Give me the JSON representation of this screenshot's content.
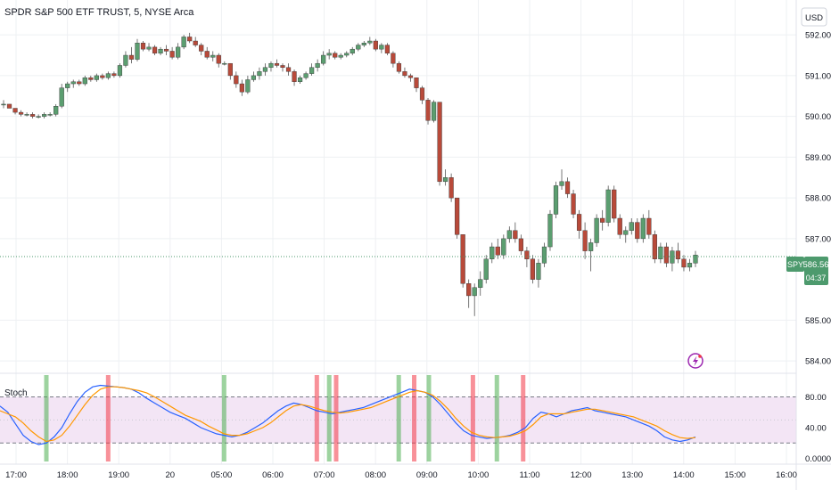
{
  "header": {
    "title": "SPDR S&P 500 ETF TRUST, 5, NYSE Arca"
  },
  "currency": {
    "label": "USD"
  },
  "price_badge": {
    "symbol": "SPY",
    "price": "586.56",
    "countdown": "04:37"
  },
  "indicator": {
    "label": "Stoch"
  },
  "colors": {
    "up": "#26a69a",
    "up_body": "#5b9e70",
    "down": "#b84a3a",
    "k_line": "#2962ff",
    "d_line": "#ff9800",
    "band_fill": "#f3e5f5",
    "buy_band": "#4caf50",
    "sell_band": "#f23645",
    "badge": "#4d9a6d",
    "grid": "#eef0f3"
  },
  "chart_data": [
    {
      "type": "candlestick",
      "title": "SPDR S&P 500 ETF TRUST, 5, NYSE Arca",
      "y_ticks": [
        "592.00",
        "591.00",
        "590.00",
        "589.00",
        "588.00",
        "587.00",
        "585.00",
        "584.00"
      ],
      "ylim": [
        583.85,
        592.2
      ],
      "x_ticks": [
        "17:00",
        "18:00",
        "19:00",
        "20",
        "05:00",
        "06:00",
        "07:00",
        "08:00",
        "09:00",
        "10:00",
        "11:00",
        "12:00",
        "13:00",
        "14:00",
        "15:00",
        "16:00"
      ],
      "last_price": 586.56,
      "candles": [
        [
          590.3,
          590.4,
          590.2,
          590.3
        ],
        [
          590.3,
          590.3,
          590.2,
          590.2
        ],
        [
          590.2,
          590.2,
          590.05,
          590.1
        ],
        [
          590.1,
          590.15,
          590.0,
          590.05
        ],
        [
          590.05,
          590.1,
          590.0,
          590.05
        ],
        [
          590.05,
          590.1,
          589.95,
          590.0
        ],
        [
          590.0,
          590.05,
          589.95,
          590.0
        ],
        [
          590.0,
          590.1,
          589.95,
          590.05
        ],
        [
          590.05,
          590.1,
          590.0,
          590.05
        ],
        [
          590.05,
          590.3,
          590.0,
          590.25
        ],
        [
          590.25,
          590.8,
          590.2,
          590.7
        ],
        [
          590.7,
          590.85,
          590.6,
          590.8
        ],
        [
          590.8,
          590.9,
          590.7,
          590.85
        ],
        [
          590.85,
          590.9,
          590.75,
          590.8
        ],
        [
          590.8,
          591.0,
          590.75,
          590.95
        ],
        [
          590.95,
          591.0,
          590.85,
          590.9
        ],
        [
          590.9,
          591.05,
          590.85,
          591.0
        ],
        [
          591.0,
          591.05,
          590.9,
          590.95
        ],
        [
          590.95,
          591.1,
          590.9,
          591.05
        ],
        [
          591.05,
          591.1,
          590.95,
          591.0
        ],
        [
          591.0,
          591.3,
          590.95,
          591.25
        ],
        [
          591.25,
          591.6,
          591.2,
          591.5
        ],
        [
          591.5,
          591.7,
          591.3,
          591.4
        ],
        [
          591.4,
          591.9,
          591.35,
          591.8
        ],
        [
          591.8,
          591.85,
          591.6,
          591.65
        ],
        [
          591.65,
          591.8,
          591.6,
          591.7
        ],
        [
          591.7,
          591.75,
          591.5,
          591.55
        ],
        [
          591.55,
          591.7,
          591.5,
          591.65
        ],
        [
          591.65,
          591.75,
          591.5,
          591.6
        ],
        [
          591.6,
          591.7,
          591.4,
          591.45
        ],
        [
          591.45,
          591.8,
          591.4,
          591.7
        ],
        [
          591.7,
          592.0,
          591.65,
          591.95
        ],
        [
          591.95,
          592.05,
          591.8,
          591.85
        ],
        [
          591.85,
          591.95,
          591.7,
          591.75
        ],
        [
          591.75,
          591.8,
          591.5,
          591.6
        ],
        [
          591.6,
          591.7,
          591.4,
          591.45
        ],
        [
          591.45,
          591.6,
          591.35,
          591.5
        ],
        [
          591.5,
          591.55,
          591.2,
          591.3
        ],
        [
          591.3,
          591.35,
          591.25,
          591.3
        ],
        [
          591.3,
          591.3,
          590.9,
          591.0
        ],
        [
          591.0,
          591.1,
          590.7,
          590.8
        ],
        [
          590.8,
          590.9,
          590.5,
          590.6
        ],
        [
          590.6,
          591.0,
          590.55,
          590.9
        ],
        [
          590.9,
          591.1,
          590.85,
          591.0
        ],
        [
          591.0,
          591.2,
          590.9,
          591.1
        ],
        [
          591.1,
          591.3,
          591.0,
          591.2
        ],
        [
          591.2,
          591.35,
          591.1,
          591.3
        ],
        [
          591.3,
          591.4,
          591.2,
          591.25
        ],
        [
          591.25,
          591.3,
          591.1,
          591.2
        ],
        [
          591.2,
          591.3,
          591.0,
          591.1
        ],
        [
          591.1,
          591.15,
          590.75,
          590.85
        ],
        [
          590.85,
          591.0,
          590.8,
          590.95
        ],
        [
          590.95,
          591.1,
          590.9,
          591.05
        ],
        [
          591.05,
          591.3,
          591.0,
          591.2
        ],
        [
          591.2,
          591.4,
          591.1,
          591.3
        ],
        [
          591.3,
          591.6,
          591.25,
          591.5
        ],
        [
          591.5,
          591.65,
          591.4,
          591.55
        ],
        [
          591.55,
          591.6,
          591.4,
          591.45
        ],
        [
          591.45,
          591.55,
          591.4,
          591.5
        ],
        [
          591.5,
          591.6,
          591.45,
          591.55
        ],
        [
          591.55,
          591.7,
          591.5,
          591.65
        ],
        [
          591.65,
          591.8,
          591.6,
          591.75
        ],
        [
          591.75,
          591.85,
          591.7,
          591.8
        ],
        [
          591.8,
          591.95,
          591.75,
          591.85
        ],
        [
          591.85,
          591.9,
          591.6,
          591.65
        ],
        [
          591.65,
          591.8,
          591.55,
          591.75
        ],
        [
          591.75,
          591.8,
          591.5,
          591.55
        ],
        [
          591.55,
          591.6,
          591.2,
          591.3
        ],
        [
          591.3,
          591.35,
          591.05,
          591.1
        ],
        [
          591.1,
          591.2,
          590.95,
          591.0
        ],
        [
          591.0,
          591.05,
          590.85,
          590.95
        ],
        [
          590.95,
          590.95,
          590.6,
          590.7
        ],
        [
          590.7,
          590.75,
          590.3,
          590.4
        ],
        [
          590.4,
          590.45,
          589.8,
          589.9
        ],
        [
          589.9,
          590.4,
          589.85,
          590.35
        ],
        [
          590.35,
          590.35,
          588.3,
          588.4
        ],
        [
          588.4,
          588.7,
          588.3,
          588.5
        ],
        [
          588.5,
          588.6,
          587.9,
          588.0
        ],
        [
          588.0,
          588.0,
          587.0,
          587.1
        ],
        [
          587.1,
          587.1,
          585.8,
          585.9
        ],
        [
          585.9,
          586.0,
          585.3,
          585.6
        ],
        [
          585.6,
          585.9,
          585.1,
          585.8
        ],
        [
          585.8,
          586.2,
          585.6,
          586.0
        ],
        [
          586.0,
          586.6,
          585.9,
          586.5
        ],
        [
          586.5,
          586.9,
          586.4,
          586.8
        ],
        [
          586.8,
          587.0,
          586.5,
          586.6
        ],
        [
          586.6,
          587.1,
          586.5,
          587.0
        ],
        [
          587.0,
          587.3,
          586.9,
          587.2
        ],
        [
          587.2,
          587.4,
          586.9,
          587.0
        ],
        [
          587.0,
          587.1,
          586.6,
          586.7
        ],
        [
          586.7,
          586.8,
          586.3,
          586.5
        ],
        [
          586.5,
          586.6,
          585.9,
          586.0
        ],
        [
          586.0,
          586.5,
          585.8,
          586.4
        ],
        [
          586.4,
          586.9,
          586.3,
          586.8
        ],
        [
          586.8,
          587.7,
          586.7,
          587.6
        ],
        [
          587.6,
          588.4,
          587.5,
          588.3
        ],
        [
          588.3,
          588.7,
          588.2,
          588.4
        ],
        [
          588.4,
          588.5,
          588.0,
          588.1
        ],
        [
          588.1,
          588.2,
          587.5,
          587.6
        ],
        [
          587.6,
          587.7,
          587.0,
          587.2
        ],
        [
          587.2,
          587.4,
          586.5,
          586.7
        ],
        [
          586.7,
          587.0,
          586.2,
          586.9
        ],
        [
          586.9,
          587.6,
          586.8,
          587.5
        ],
        [
          587.5,
          587.7,
          587.2,
          587.4
        ],
        [
          587.4,
          588.3,
          587.3,
          588.2
        ],
        [
          588.2,
          588.3,
          587.4,
          587.5
        ],
        [
          587.5,
          587.6,
          587.0,
          587.1
        ],
        [
          587.1,
          587.3,
          586.9,
          587.2
        ],
        [
          587.2,
          587.5,
          587.1,
          587.4
        ],
        [
          587.4,
          587.5,
          586.9,
          587.0
        ],
        [
          587.0,
          587.6,
          586.9,
          587.5
        ],
        [
          587.5,
          587.7,
          587.0,
          587.1
        ],
        [
          587.1,
          587.2,
          586.4,
          586.5
        ],
        [
          586.5,
          586.9,
          586.4,
          586.8
        ],
        [
          586.8,
          586.9,
          586.3,
          586.4
        ],
        [
          586.4,
          586.8,
          586.2,
          586.7
        ],
        [
          586.7,
          586.9,
          586.4,
          586.5
        ],
        [
          586.5,
          586.6,
          586.2,
          586.3
        ],
        [
          586.3,
          586.5,
          586.2,
          586.4
        ],
        [
          586.4,
          586.7,
          586.3,
          586.6
        ]
      ]
    },
    {
      "type": "line",
      "title": "Stoch",
      "y_ticks": [
        "80.00",
        "40.00",
        "0.0000"
      ],
      "ylim": [
        -4,
        106
      ],
      "levels": [
        80,
        20
      ],
      "series": [
        {
          "name": "%K",
          "values": [
            68,
            60,
            45,
            30,
            22,
            18,
            20,
            28,
            40,
            58,
            74,
            86,
            93,
            95,
            94,
            93,
            92,
            90,
            85,
            78,
            72,
            66,
            60,
            56,
            52,
            46,
            40,
            36,
            32,
            30,
            28,
            30,
            34,
            40,
            46,
            54,
            62,
            68,
            72,
            70,
            66,
            62,
            60,
            58,
            60,
            62,
            64,
            66,
            70,
            74,
            78,
            82,
            86,
            90,
            88,
            86,
            80,
            70,
            58,
            46,
            36,
            30,
            28,
            26,
            27,
            28,
            30,
            34,
            40,
            52,
            60,
            58,
            54,
            58,
            62,
            64,
            66,
            62,
            60,
            58,
            56,
            54,
            50,
            46,
            42,
            36,
            28,
            24,
            22,
            24,
            28
          ]
        },
        {
          "name": "%D",
          "values": [
            62,
            58,
            54,
            46,
            36,
            28,
            22,
            24,
            30,
            42,
            56,
            70,
            82,
            90,
            93,
            93,
            92,
            90,
            88,
            85,
            80,
            74,
            68,
            62,
            56,
            52,
            48,
            42,
            37,
            32,
            30,
            30,
            32,
            36,
            40,
            46,
            54,
            62,
            68,
            70,
            68,
            65,
            62,
            60,
            59,
            60,
            62,
            64,
            66,
            70,
            74,
            78,
            82,
            86,
            88,
            86,
            82,
            74,
            64,
            52,
            42,
            34,
            30,
            28,
            27,
            28,
            29,
            32,
            36,
            44,
            54,
            58,
            58,
            58,
            60,
            62,
            64,
            64,
            62,
            60,
            58,
            56,
            54,
            50,
            46,
            42,
            36,
            31,
            27,
            26,
            27
          ]
        }
      ],
      "vertical_bands": [
        {
          "index": 6,
          "color": "buy"
        },
        {
          "index": 14,
          "color": "sell"
        },
        {
          "index": 29,
          "color": "buy"
        },
        {
          "index": 41,
          "color": "sell"
        },
        {
          "index": 42.6,
          "color": "buy"
        },
        {
          "index": 43.5,
          "color": "sell"
        },
        {
          "index": 51.6,
          "color": "buy"
        },
        {
          "index": 53.6,
          "color": "sell"
        },
        {
          "index": 55.5,
          "color": "buy"
        },
        {
          "index": 61.2,
          "color": "sell"
        },
        {
          "index": 64.3,
          "color": "buy"
        },
        {
          "index": 67.7,
          "color": "sell"
        }
      ]
    }
  ]
}
